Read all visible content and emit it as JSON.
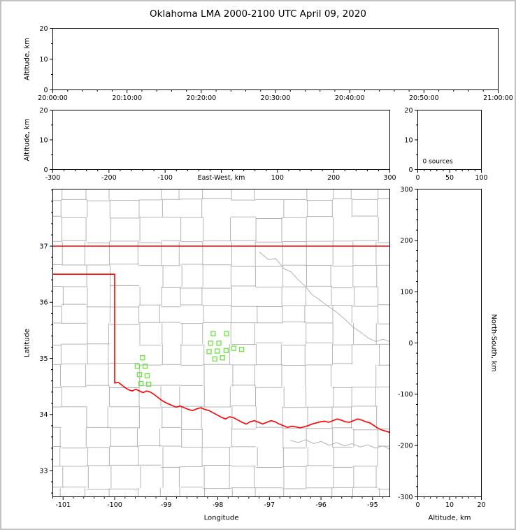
{
  "title": "Oklahoma LMA 2000-2100 UTC April 09, 2020",
  "colors": {
    "axis": "#000000",
    "text": "#000000",
    "county": "#b3b3b3",
    "state_border": "#ff0000",
    "station": "#6be33f",
    "frame": "#c2c2c2",
    "background": "#ffffff"
  },
  "chart_data": [
    {
      "id": "time-height",
      "type": "scatter",
      "xlabel": "",
      "ylabel": "Altitude, km",
      "xlim": [
        0,
        3600
      ],
      "ylim": [
        0,
        20
      ],
      "x_ticks": {
        "values": [
          0,
          600,
          1200,
          1800,
          2400,
          3000,
          3600
        ],
        "labels": [
          "20:00:00",
          "20:10:00",
          "20:20:00",
          "20:30:00",
          "20:40:00",
          "20:50:00",
          "21:00:00"
        ],
        "minor_step": 120
      },
      "y_ticks": {
        "values": [
          0,
          10,
          20
        ],
        "labels": [
          "0",
          "10",
          "20"
        ],
        "minor_step": 5
      },
      "points": []
    },
    {
      "id": "ew-height",
      "type": "scatter",
      "xlabel": "East-West, km",
      "xlabel_inline": true,
      "ylabel": "Altitude, km",
      "xlim": [
        -300,
        300
      ],
      "ylim": [
        0,
        20
      ],
      "x_ticks": {
        "values": [
          -300,
          -200,
          -100,
          0,
          100,
          200,
          300
        ],
        "labels": [
          "-300",
          "-200",
          "-100",
          "",
          "100",
          "200",
          "300"
        ],
        "minor_step": 20
      },
      "y_ticks": {
        "values": [
          0,
          10,
          20
        ],
        "labels": [
          "0",
          "10",
          "20"
        ],
        "minor_step": 5
      },
      "points": []
    },
    {
      "id": "alt-histogram",
      "type": "bar",
      "xlabel": "",
      "ylabel": "",
      "xlim": [
        0,
        100
      ],
      "ylim": [
        0,
        20
      ],
      "x_ticks": {
        "values": [
          0,
          50,
          100
        ],
        "labels": [
          "0",
          "50",
          "100"
        ],
        "minor_step": 10
      },
      "y_ticks": {
        "values": [
          0,
          10,
          20
        ],
        "labels": [
          "0",
          "10",
          "20"
        ],
        "minor_step": 5
      },
      "annotation": "0 sources",
      "points": []
    },
    {
      "id": "map",
      "type": "scatter",
      "xlabel": "Longitude",
      "ylabel": "Latitude",
      "xlim": [
        -101.2,
        -94.666
      ],
      "ylim": [
        32.533,
        38.016
      ],
      "x_ticks": {
        "values": [
          -101,
          -100,
          -99,
          -98,
          -97,
          -96,
          -95
        ],
        "labels": [
          "-101",
          "-100",
          "-99",
          "-98",
          "-97",
          "-96",
          "-95"
        ],
        "minor_step": 0.2
      },
      "y_ticks": {
        "values": [
          33,
          34,
          35,
          36,
          37
        ],
        "labels": [
          "33",
          "34",
          "35",
          "36",
          "37"
        ],
        "minor_step": 0.2
      },
      "points": [],
      "stations": [
        [
          -98.09,
          35.44
        ],
        [
          -97.83,
          35.44
        ],
        [
          -98.14,
          35.27
        ],
        [
          -97.98,
          35.27
        ],
        [
          -98.17,
          35.12
        ],
        [
          -98.01,
          35.13
        ],
        [
          -97.84,
          35.14
        ],
        [
          -97.69,
          35.18
        ],
        [
          -98.06,
          34.99
        ],
        [
          -97.91,
          35.01
        ],
        [
          -97.54,
          35.16
        ],
        [
          -99.46,
          35.01
        ],
        [
          -99.56,
          34.86
        ],
        [
          -99.41,
          34.86
        ],
        [
          -99.52,
          34.71
        ],
        [
          -99.37,
          34.69
        ],
        [
          -99.49,
          34.55
        ],
        [
          -99.34,
          34.54
        ]
      ],
      "state_border": [
        [
          [
            -101.2,
            37.0
          ],
          [
            -94.666,
            37.0
          ]
        ],
        [
          [
            -101.2,
            36.5
          ],
          [
            -100.0,
            36.5
          ],
          [
            -100.0,
            34.56
          ],
          [
            -99.93,
            34.57
          ],
          [
            -99.87,
            34.53
          ],
          [
            -99.8,
            34.48
          ],
          [
            -99.73,
            34.44
          ],
          [
            -99.66,
            34.42
          ],
          [
            -99.59,
            34.45
          ],
          [
            -99.52,
            34.42
          ],
          [
            -99.45,
            34.39
          ],
          [
            -99.38,
            34.42
          ],
          [
            -99.31,
            34.4
          ],
          [
            -99.24,
            34.36
          ],
          [
            -99.17,
            34.31
          ],
          [
            -99.1,
            34.26
          ],
          [
            -99.03,
            34.22
          ],
          [
            -98.96,
            34.19
          ],
          [
            -98.89,
            34.16
          ],
          [
            -98.81,
            34.13
          ],
          [
            -98.73,
            34.15
          ],
          [
            -98.65,
            34.12
          ],
          [
            -98.57,
            34.09
          ],
          [
            -98.49,
            34.07
          ],
          [
            -98.41,
            34.1
          ],
          [
            -98.33,
            34.12
          ],
          [
            -98.25,
            34.09
          ],
          [
            -98.17,
            34.07
          ],
          [
            -98.09,
            34.03
          ],
          [
            -98.01,
            33.99
          ],
          [
            -97.93,
            33.95
          ],
          [
            -97.85,
            33.92
          ],
          [
            -97.77,
            33.96
          ],
          [
            -97.69,
            33.94
          ],
          [
            -97.61,
            33.9
          ],
          [
            -97.53,
            33.86
          ],
          [
            -97.45,
            33.83
          ],
          [
            -97.37,
            33.87
          ],
          [
            -97.29,
            33.89
          ],
          [
            -97.21,
            33.86
          ],
          [
            -97.13,
            33.83
          ],
          [
            -97.05,
            33.86
          ],
          [
            -96.97,
            33.89
          ],
          [
            -96.89,
            33.87
          ],
          [
            -96.81,
            33.83
          ],
          [
            -96.73,
            33.8
          ],
          [
            -96.65,
            33.77
          ],
          [
            -96.57,
            33.79
          ],
          [
            -96.49,
            33.78
          ],
          [
            -96.41,
            33.76
          ],
          [
            -96.33,
            33.78
          ],
          [
            -96.25,
            33.8
          ],
          [
            -96.17,
            33.83
          ],
          [
            -96.09,
            33.85
          ],
          [
            -96.01,
            33.87
          ],
          [
            -95.93,
            33.88
          ],
          [
            -95.85,
            33.86
          ],
          [
            -95.77,
            33.89
          ],
          [
            -95.69,
            33.92
          ],
          [
            -95.61,
            33.9
          ],
          [
            -95.53,
            33.87
          ],
          [
            -95.45,
            33.86
          ],
          [
            -95.37,
            33.89
          ],
          [
            -95.29,
            33.92
          ],
          [
            -95.21,
            33.9
          ],
          [
            -95.13,
            33.87
          ],
          [
            -95.05,
            33.85
          ],
          [
            -94.97,
            33.8
          ],
          [
            -94.89,
            33.75
          ],
          [
            -94.81,
            33.72
          ],
          [
            -94.66,
            33.68
          ]
        ]
      ],
      "rivers": [
        [
          [
            -97.2,
            36.9
          ],
          [
            -97.02,
            36.76
          ],
          [
            -96.88,
            36.78
          ],
          [
            -96.72,
            36.6
          ],
          [
            -96.58,
            36.54
          ],
          [
            -96.44,
            36.4
          ],
          [
            -96.3,
            36.28
          ],
          [
            -96.18,
            36.14
          ],
          [
            -96.02,
            36.04
          ],
          [
            -95.88,
            35.94
          ],
          [
            -95.72,
            35.84
          ],
          [
            -95.54,
            35.7
          ],
          [
            -95.38,
            35.56
          ],
          [
            -95.22,
            35.46
          ],
          [
            -95.08,
            35.36
          ],
          [
            -94.94,
            35.3
          ],
          [
            -94.8,
            35.34
          ],
          [
            -94.66,
            35.3
          ]
        ],
        [
          [
            -96.6,
            33.54
          ],
          [
            -96.44,
            33.5
          ],
          [
            -96.3,
            33.55
          ],
          [
            -96.14,
            33.48
          ],
          [
            -96.0,
            33.52
          ],
          [
            -95.84,
            33.45
          ],
          [
            -95.7,
            33.5
          ],
          [
            -95.54,
            33.44
          ],
          [
            -95.4,
            33.48
          ],
          [
            -95.24,
            33.42
          ],
          [
            -95.1,
            33.46
          ],
          [
            -94.94,
            33.4
          ],
          [
            -94.8,
            33.44
          ],
          [
            -94.66,
            33.38
          ]
        ]
      ],
      "county_grid": {
        "lon_start": -101.45,
        "lon_end": -94.5,
        "col_min": 0.36,
        "col_max": 0.58,
        "lat_start": 32.4,
        "lat_end": 38.1,
        "row_min": 0.28,
        "row_max": 0.44,
        "jitter": 0.07,
        "skip": 0.1,
        "seed": 20200409
      }
    },
    {
      "id": "ns-height",
      "type": "scatter",
      "xlabel": "Altitude, km",
      "ylabel": "North-South, km",
      "ylabel_side": "right",
      "xlim": [
        0,
        20
      ],
      "ylim": [
        -300,
        300
      ],
      "x_ticks": {
        "values": [
          0,
          10,
          20
        ],
        "labels": [
          "0",
          "10",
          "20"
        ],
        "minor_step": 2
      },
      "y_ticks": {
        "values": [
          -300,
          -200,
          -100,
          0,
          100,
          200,
          300
        ],
        "labels": [
          "-300",
          "-200",
          "-100",
          "0",
          "100",
          "200",
          "300"
        ],
        "minor_step": 20
      },
      "points": []
    }
  ]
}
